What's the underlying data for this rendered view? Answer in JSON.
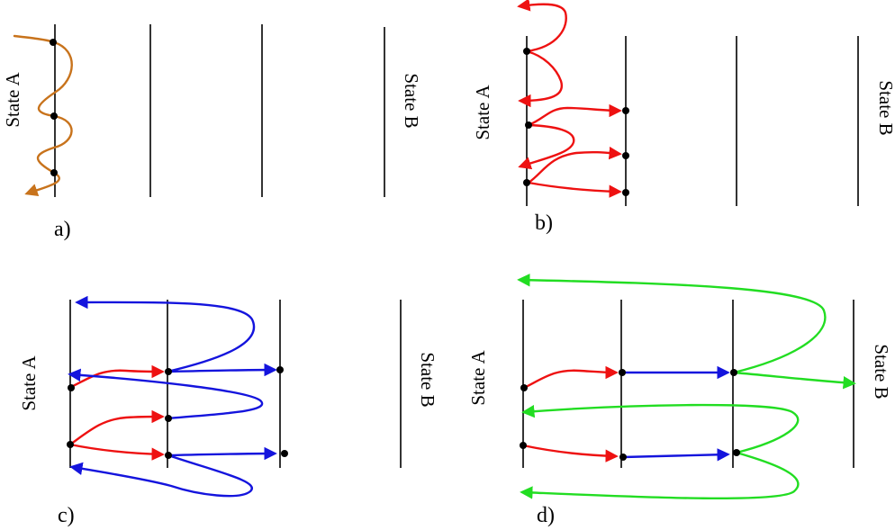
{
  "colors": {
    "orange": "#c8731c",
    "red": "#ee1111",
    "blue": "#1414dd",
    "green": "#22dd22",
    "black": "#000000"
  },
  "panels": [
    {
      "id": "a",
      "label": "a)",
      "state_a": "State A",
      "state_b": "State B"
    },
    {
      "id": "b",
      "label": "b)",
      "state_a": "State A",
      "state_b": "State B"
    },
    {
      "id": "c",
      "label": "c)",
      "state_a": "State A",
      "state_b": "State B"
    },
    {
      "id": "d",
      "label": "d)",
      "state_a": "State A",
      "state_b": "State B"
    }
  ]
}
